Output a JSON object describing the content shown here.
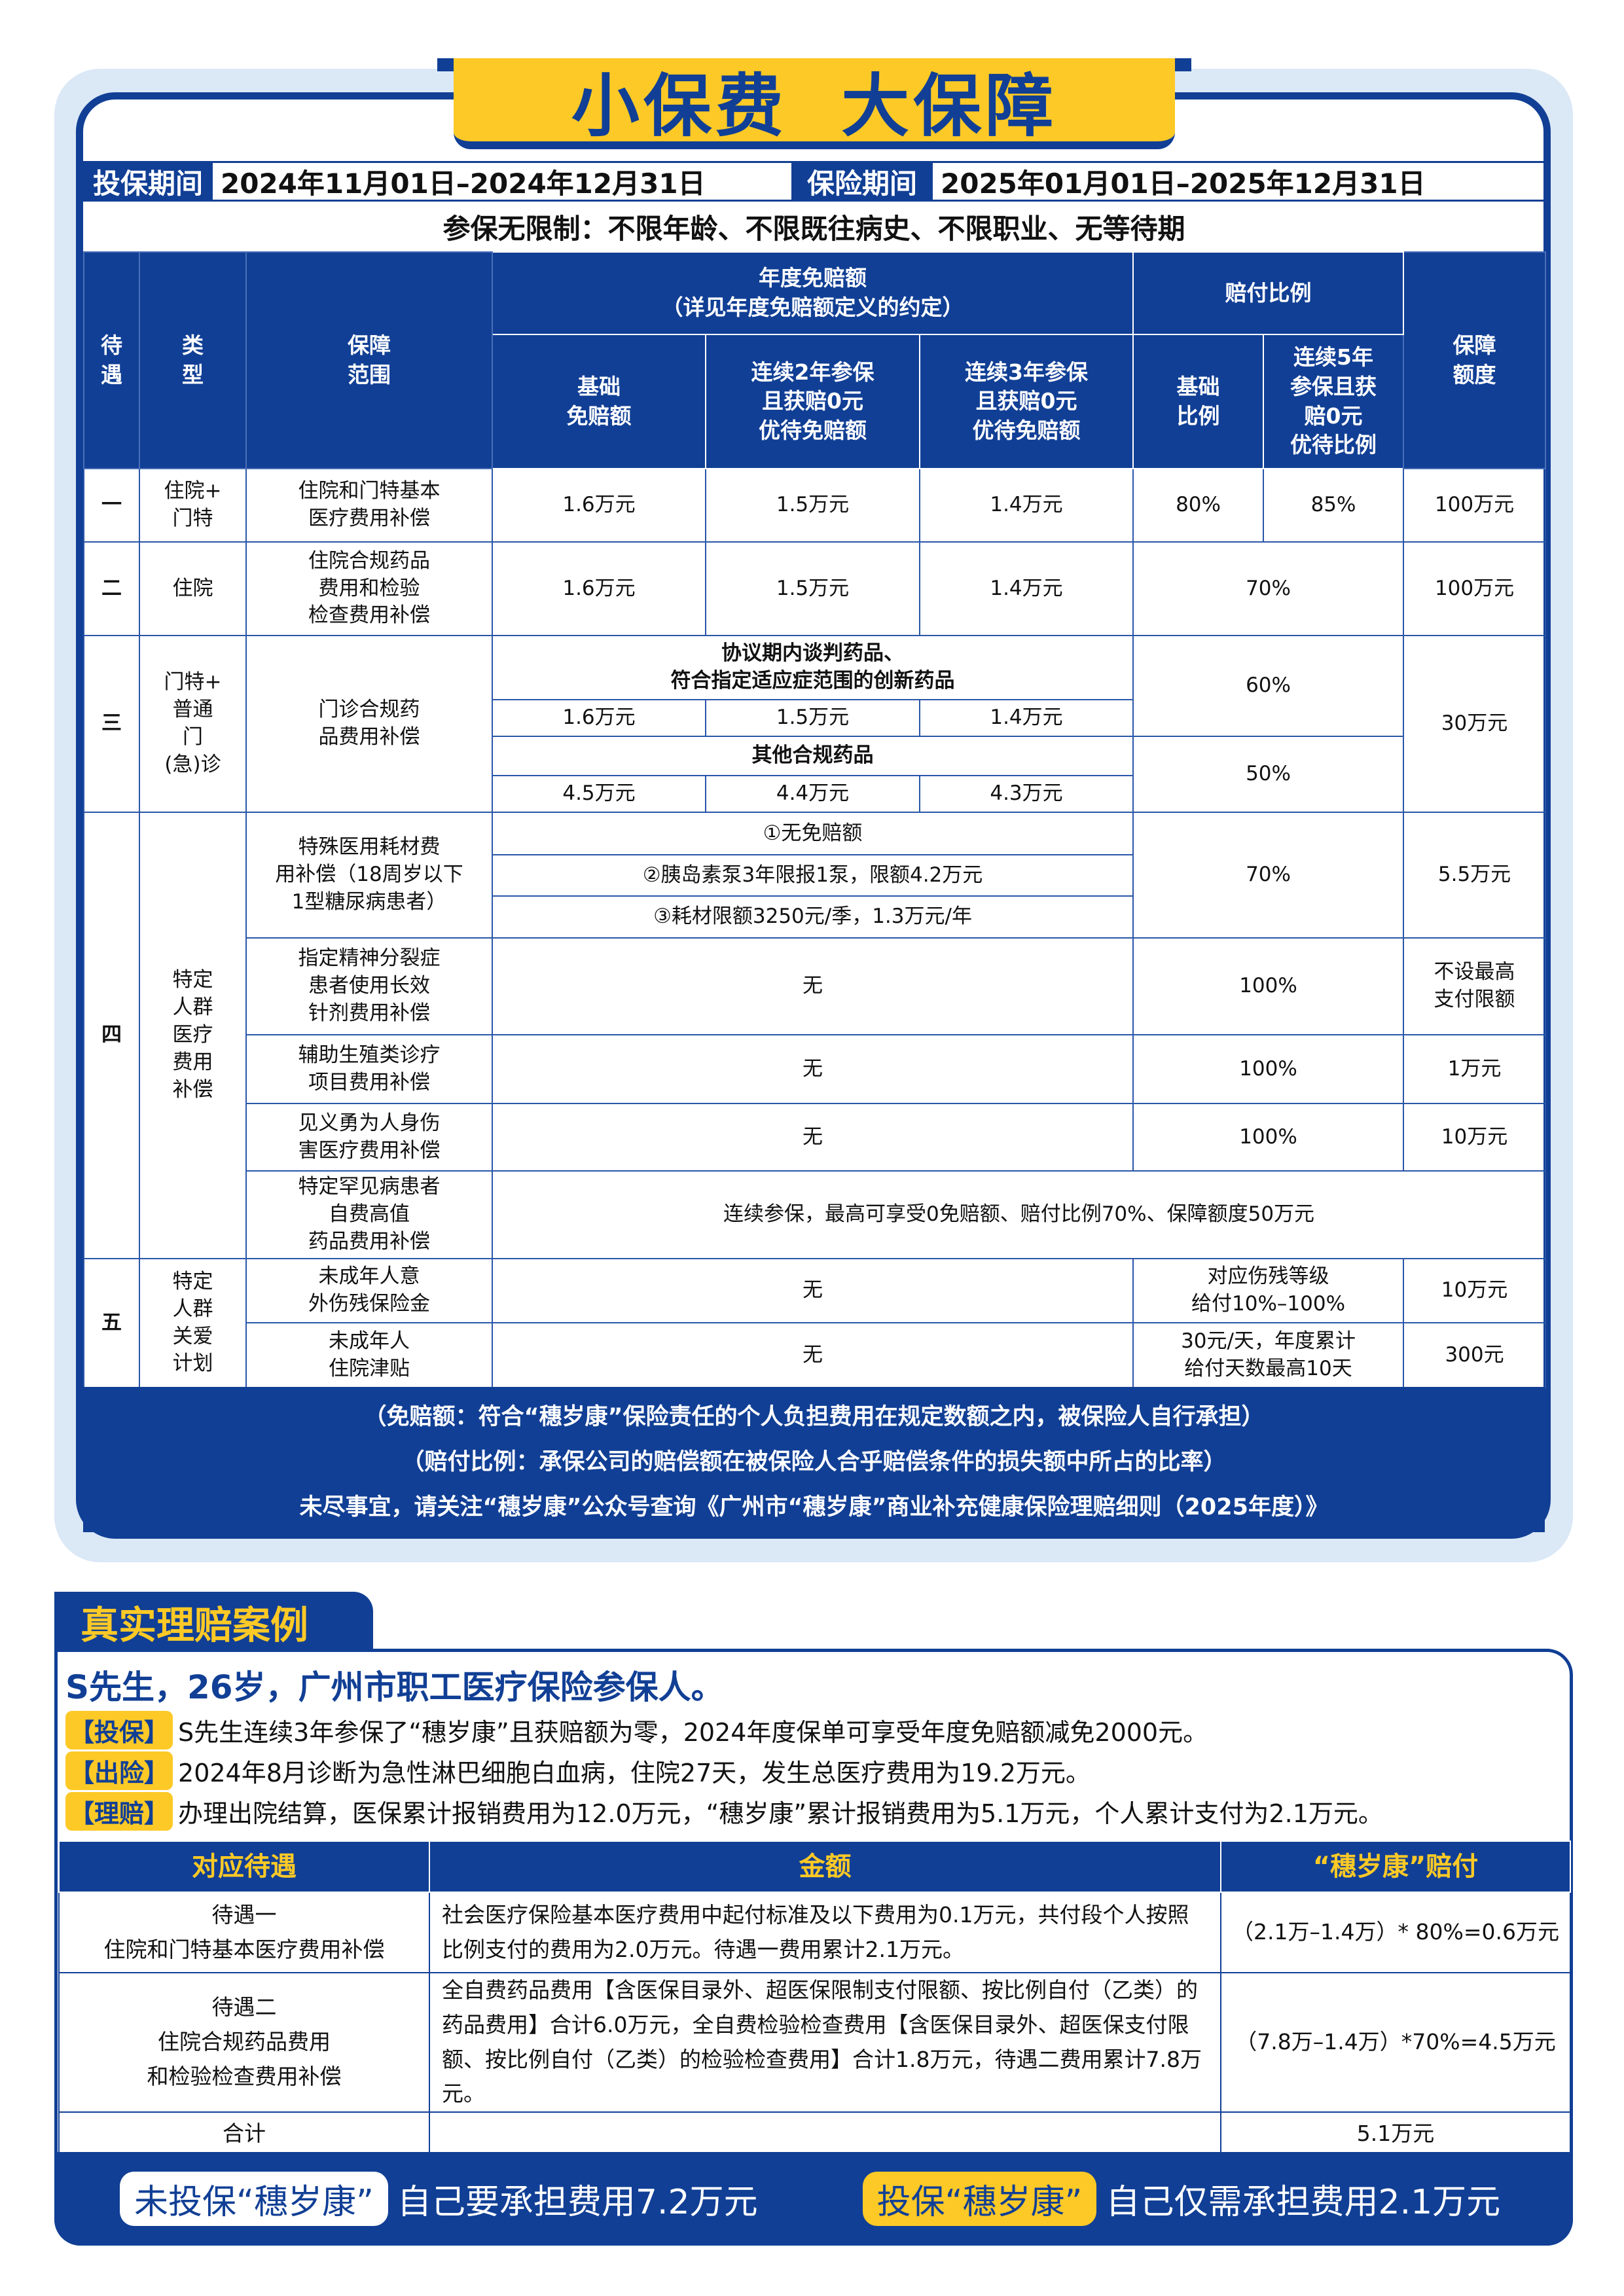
{
  "colors": {
    "brand_blue": "#113f95",
    "accent_yellow": "#fcc926",
    "panel_bg": "#dbe8f6"
  },
  "banner": {
    "title": "小保费  大保障"
  },
  "period": {
    "enroll_label": "投保期间",
    "enroll_value": "2024年11月01日–2024年12月31日",
    "cover_label": "保险期间",
    "cover_value": "2025年01月01日–2025年12月31日"
  },
  "restriction": "参保无限制：不限年龄、不限既往病史、不限职业、无等待期",
  "header": {
    "tier": "待\n遇",
    "type": "类\n型",
    "scope": "保障\n范围",
    "deductible": "年度免赔额\n（详见年度免赔额定义的约定）",
    "ratio": "赔付比例",
    "limit": "保障\n额度",
    "d_base": "基础\n免赔额",
    "d_2y": "连续2年参保\n且获赔0元\n优待免赔额",
    "d_3y": "连续3年参保\n且获赔0元\n优待免赔额",
    "r_base": "基础\n比例",
    "r_5y": "连续5年\n参保且获\n赔0元\n优待比例"
  },
  "rows": {
    "r1": {
      "tier": "一",
      "type": "住院+\n门特",
      "scope": "住院和门特基本\n医疗费用补偿",
      "d1": "1.6万元",
      "d2": "1.5万元",
      "d3": "1.4万元",
      "r1": "80%",
      "r2": "85%",
      "limit": "100万元"
    },
    "r2": {
      "tier": "二",
      "type": "住院",
      "scope": "住院合规药品\n费用和检验\n检查费用补偿",
      "d1": "1.6万元",
      "d2": "1.5万元",
      "d3": "1.4万元",
      "ratio": "70%",
      "limit": "100万元"
    },
    "r3": {
      "tier": "三",
      "type": "门特+\n普通\n门\n(急)诊",
      "scope": "门诊合规药\n品费用补偿",
      "sub1": "协议期内谈判药品、\n符合指定适应症范围的创新药品",
      "a1": "1.6万元",
      "a2": "1.5万元",
      "a3": "1.4万元",
      "ratio1": "60%",
      "sub2": "其他合规药品",
      "b1": "4.5万元",
      "b2": "4.4万元",
      "b3": "4.3万元",
      "ratio2": "50%",
      "limit": "30万元"
    },
    "r4": {
      "tier": "四",
      "type": "特定\n人群\n医疗\n费用\n补偿",
      "a": {
        "scope": "特殊医用耗材费\n用补偿（18周岁以下\n1型糖尿病患者）",
        "l1": "①无免赔额",
        "l2": "②胰岛素泵3年限报1泵，限额4.2万元",
        "l3": "③耗材限额3250元/季，1.3万元/年",
        "ratio": "70%",
        "limit": "5.5万元"
      },
      "b": {
        "scope": "指定精神分裂症\n患者使用长效\n针剂费用补偿",
        "ded": "无",
        "ratio": "100%",
        "limit": "不设最高\n支付限额"
      },
      "c": {
        "scope": "辅助生殖类诊疗\n项目费用补偿",
        "ded": "无",
        "ratio": "100%",
        "limit": "1万元"
      },
      "d": {
        "scope": "见义勇为人身伤\n害医疗费用补偿",
        "ded": "无",
        "ratio": "100%",
        "limit": "10万元"
      },
      "e": {
        "scope": "特定罕见病患者\n自费高值\n药品费用补偿",
        "text": "连续参保，最高可享受0免赔额、赔付比例70%、保障额度50万元"
      }
    },
    "r5": {
      "tier": "五",
      "type": "特定\n人群\n关爱\n计划",
      "a": {
        "scope": "未成年人意\n外伤残保险金",
        "ded": "无",
        "ratio": "对应伤残等级\n给付10%–100%",
        "limit": "10万元"
      },
      "b": {
        "scope": "未成年人\n住院津贴",
        "ded": "无",
        "ratio": "30元/天，年度累计\n给付天数最高10天",
        "limit": "300元"
      }
    }
  },
  "notes": [
    "（免赔额：符合“穗岁康”保险责任的个人负担费用在规定数额之内，被保险人自行承担）",
    "（赔付比例：承保公司的赔偿额在被保险人合乎赔偿条件的损失额中所占的比率）",
    "未尽事宜，请关注“穗岁康”公众号查询《广州市“穗岁康”商业补充健康保险理赔细则（2025年度）》"
  ],
  "case": {
    "section_title": "真实理赔案例",
    "title": "S先生，26岁，广州市职工医疗保险参保人。",
    "lines": [
      {
        "tag": "【投保】",
        "text": "S先生连续3年参保了“穗岁康”且获赔额为零，2024年度保单可享受年度免赔额减免2000元。"
      },
      {
        "tag": "【出险】",
        "text": "2024年8月诊断为急性淋巴细胞白血病，住院27天，发生总医疗费用为19.2万元。"
      },
      {
        "tag": "【理赔】",
        "text": "办理出院结算，医保累计报销费用为12.0万元，“穗岁康”累计报销费用为5.1万元，个人累计支付为2.1万元。"
      }
    ],
    "table": {
      "headers": [
        "对应待遇",
        "金额",
        "“穗岁康”赔付"
      ],
      "rows": [
        {
          "tier": "待遇一\n住院和门特基本医疗费用补偿",
          "amount": "社会医疗保险基本医疗费用中起付标准及以下费用为0.1万元，共付段个人按照比例支付的费用为2.0万元。待遇一费用累计2.1万元。",
          "pay": "（2.1万–1.4万）* 80%=0.6万元"
        },
        {
          "tier": "待遇二\n住院合规药品费用\n和检验检查费用补偿",
          "amount": "全自费药品费用【含医保目录外、超医保限制支付限额、按比例自付（乙类）的药品费用】合计6.0万元，全自费检验检查费用【含医保目录外、超医保支付限额、按比例自付（乙类）的检验检查费用】合计1.8万元，待遇二费用累计7.8万元。",
          "pay": "（7.8万–1.4万）*70%=4.5万元"
        }
      ],
      "total_label": "合计",
      "total_value": "5.1万元"
    },
    "compare": {
      "without_label": "未投保“穗岁康”",
      "without_text": "自己要承担费用7.2万元",
      "with_label": "投保“穗岁康”",
      "with_text": "自己仅需承担费用2.1万元"
    }
  }
}
